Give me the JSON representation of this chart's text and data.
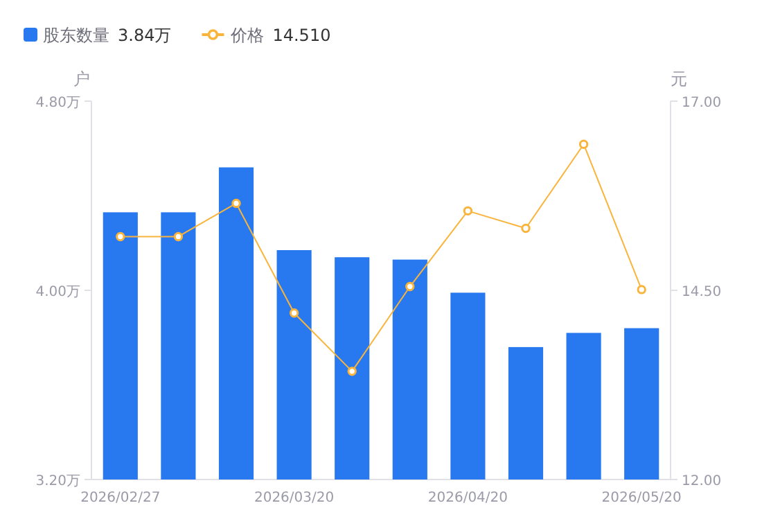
{
  "chart_data": {
    "type": "bar",
    "categories": [
      "2026/02/27",
      null,
      null,
      "2026/03/20",
      null,
      null,
      "2026/04/20",
      null,
      null,
      "2026/05/20"
    ],
    "series": [
      {
        "name": "股东数量",
        "color": "#2878f0",
        "values": [
          4.33,
          4.33,
          4.52,
          4.17,
          4.14,
          4.13,
          3.99,
          3.76,
          3.82,
          3.84
        ]
      },
      {
        "name": "价格",
        "type": "line",
        "axis": "y2",
        "color": "#f9b43c",
        "values": [
          15.21,
          15.21,
          15.65,
          14.2,
          13.43,
          14.55,
          15.55,
          15.32,
          16.43,
          14.51
        ]
      }
    ],
    "ylabel": "户",
    "y2label": "元",
    "ylim": [
      3.2,
      4.8
    ],
    "yticks": [
      {
        "value": 3.2,
        "label": "3.20万"
      },
      {
        "value": 4.0,
        "label": "4.00万"
      },
      {
        "value": 4.8,
        "label": "4.80万"
      }
    ],
    "y2lim": [
      12,
      17
    ],
    "y2ticks": [
      {
        "value": 12,
        "label": "12.00"
      },
      {
        "value": 14.5,
        "label": "14.50"
      },
      {
        "value": 17,
        "label": "17.00"
      }
    ],
    "annotations": [
      "3.84万",
      "14.510"
    ],
    "legend": "top left",
    "marker": "circle"
  }
}
